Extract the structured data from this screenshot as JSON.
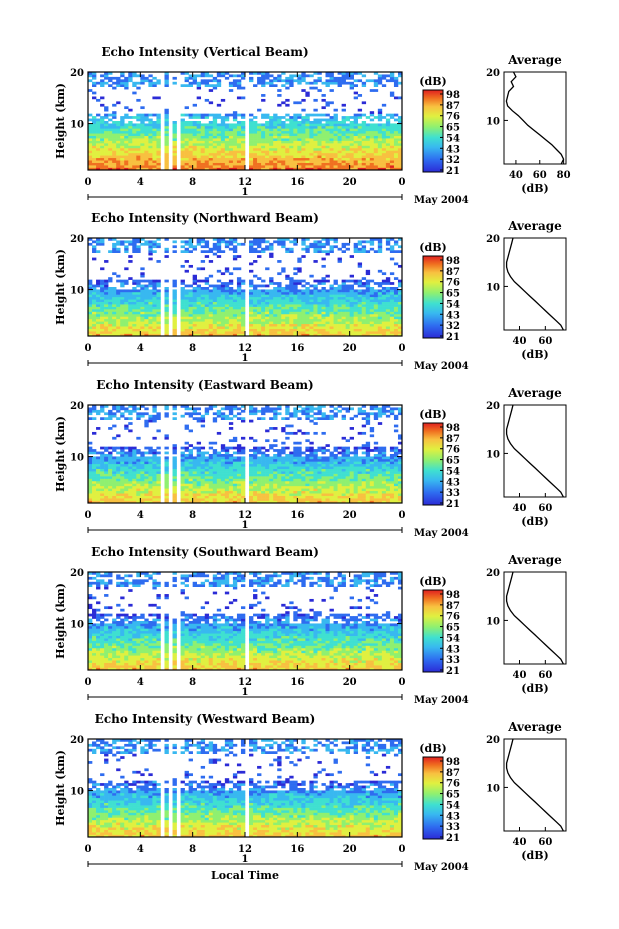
{
  "x_axis_title": "Local Time",
  "y_axis_label": "Height (km)",
  "colorbar_unit": "(dB)",
  "colorbar_ticks": [
    "98",
    "87",
    "76",
    "65",
    "54",
    "43",
    "32",
    "21"
  ],
  "colorbar_ticks_alt": [
    "98",
    "87",
    "76",
    "65",
    "54",
    "43",
    "33",
    "21"
  ],
  "date_label": "May 2004",
  "day_label": "1",
  "time_ticks": [
    "0",
    "4",
    "8",
    "12",
    "16",
    "20",
    "0"
  ],
  "height_ticks": [
    "20",
    "10"
  ],
  "average_title": "Average",
  "average_xlabel": "(dB)",
  "colors": {
    "scale": [
      "#2b2bd6",
      "#2e6cf0",
      "#38b8f0",
      "#3fe0d0",
      "#8ff070",
      "#e0f040",
      "#f8c040",
      "#f07020",
      "#e02020"
    ]
  },
  "chart_data": [
    {
      "type": "heatmap",
      "title": "Echo Intensity (Vertical Beam)",
      "xlabel": "Local Time",
      "ylabel": "Height (km)",
      "xlim": [
        0,
        24
      ],
      "ylim": [
        1,
        20
      ],
      "zlim": [
        21,
        98
      ],
      "colorbar_ticks": [
        98,
        87,
        76,
        65,
        54,
        43,
        32,
        21
      ],
      "data_gaps_hours": [
        [
          5.6,
          5.9
        ],
        [
          6.3,
          6.5
        ],
        [
          6.8,
          7.0
        ],
        [
          12.1,
          12.3
        ]
      ],
      "echo_top_km": 12,
      "surface_peak_db": 80,
      "average": {
        "title": "Average",
        "xlabel": "(dB)",
        "xticks": [
          40,
          60,
          80
        ],
        "xlim": [
          30,
          82
        ],
        "heights_km": [
          1,
          2,
          3,
          4,
          5,
          6,
          7,
          8,
          9,
          10,
          11,
          12,
          13,
          14,
          15,
          16,
          17,
          18,
          19,
          20
        ],
        "db": [
          78,
          80,
          78,
          74,
          70,
          65,
          60,
          55,
          50,
          46,
          42,
          37,
          33,
          32,
          33,
          34,
          38,
          36,
          40,
          38
        ]
      }
    },
    {
      "type": "heatmap",
      "title": "Echo Intensity (Northward Beam)",
      "xlabel": "Local Time",
      "ylabel": "Height (km)",
      "xlim": [
        0,
        24
      ],
      "ylim": [
        1,
        20
      ],
      "zlim": [
        21,
        98
      ],
      "colorbar_ticks": [
        98,
        87,
        76,
        65,
        54,
        43,
        32,
        21
      ],
      "data_gaps_hours": [
        [
          5.6,
          5.9
        ],
        [
          6.3,
          6.5
        ],
        [
          6.8,
          7.0
        ],
        [
          12.1,
          12.3
        ]
      ],
      "echo_top_km": 12,
      "surface_peak_db": 72,
      "average": {
        "title": "Average",
        "xlabel": "(dB)",
        "xticks": [
          40,
          60
        ],
        "xlim": [
          28,
          76
        ],
        "heights_km": [
          1,
          2,
          3,
          4,
          5,
          6,
          7,
          8,
          9,
          10,
          11,
          12,
          13,
          14,
          15,
          16,
          17,
          18,
          19,
          20
        ],
        "db": [
          74,
          72,
          68,
          64,
          60,
          56,
          52,
          48,
          44,
          40,
          36,
          33,
          31,
          30,
          30,
          31,
          32,
          33,
          34,
          35
        ]
      }
    },
    {
      "type": "heatmap",
      "title": "Echo Intensity (Eastward Beam)",
      "xlabel": "Local Time",
      "ylabel": "Height (km)",
      "xlim": [
        0,
        24
      ],
      "ylim": [
        1,
        20
      ],
      "zlim": [
        21,
        98
      ],
      "colorbar_ticks": [
        98,
        87,
        76,
        65,
        54,
        43,
        33,
        21
      ],
      "data_gaps_hours": [
        [
          5.6,
          5.9
        ],
        [
          6.3,
          6.5
        ],
        [
          6.8,
          7.0
        ],
        [
          12.1,
          12.3
        ]
      ],
      "echo_top_km": 12,
      "surface_peak_db": 72,
      "average": {
        "title": "Average",
        "xlabel": "(dB)",
        "xticks": [
          40,
          60
        ],
        "xlim": [
          28,
          76
        ],
        "heights_km": [
          1,
          2,
          3,
          4,
          5,
          6,
          7,
          8,
          9,
          10,
          11,
          12,
          13,
          14,
          15,
          16,
          17,
          18,
          19,
          20
        ],
        "db": [
          74,
          72,
          68,
          64,
          60,
          56,
          52,
          48,
          44,
          40,
          36,
          33,
          31,
          30,
          30,
          31,
          32,
          33,
          34,
          35
        ]
      }
    },
    {
      "type": "heatmap",
      "title": "Echo Intensity (Southward Beam)",
      "xlabel": "Local Time",
      "ylabel": "Height (km)",
      "xlim": [
        0,
        24
      ],
      "ylim": [
        1,
        20
      ],
      "zlim": [
        21,
        98
      ],
      "colorbar_ticks": [
        98,
        87,
        76,
        65,
        54,
        43,
        33,
        21
      ],
      "data_gaps_hours": [
        [
          5.6,
          5.9
        ],
        [
          6.3,
          6.5
        ],
        [
          6.8,
          7.0
        ],
        [
          12.1,
          12.3
        ]
      ],
      "echo_top_km": 12,
      "surface_peak_db": 72,
      "average": {
        "title": "Average",
        "xlabel": "(dB)",
        "xticks": [
          40,
          60
        ],
        "xlim": [
          28,
          76
        ],
        "heights_km": [
          1,
          2,
          3,
          4,
          5,
          6,
          7,
          8,
          9,
          10,
          11,
          12,
          13,
          14,
          15,
          16,
          17,
          18,
          19,
          20
        ],
        "db": [
          74,
          72,
          68,
          64,
          60,
          56,
          52,
          48,
          44,
          40,
          36,
          33,
          31,
          30,
          30,
          31,
          32,
          33,
          34,
          35
        ]
      }
    },
    {
      "type": "heatmap",
      "title": "Echo Intensity (Westward Beam)",
      "xlabel": "Local Time",
      "ylabel": "Height (km)",
      "xlim": [
        0,
        24
      ],
      "ylim": [
        1,
        20
      ],
      "zlim": [
        21,
        98
      ],
      "colorbar_ticks": [
        98,
        87,
        76,
        65,
        54,
        43,
        33,
        21
      ],
      "data_gaps_hours": [
        [
          5.6,
          5.9
        ],
        [
          6.3,
          6.5
        ],
        [
          6.8,
          7.0
        ],
        [
          12.1,
          12.3
        ]
      ],
      "echo_top_km": 12,
      "surface_peak_db": 72,
      "average": {
        "title": "Average",
        "xlabel": "(dB)",
        "xticks": [
          40,
          60
        ],
        "xlim": [
          28,
          76
        ],
        "heights_km": [
          1,
          2,
          3,
          4,
          5,
          6,
          7,
          8,
          9,
          10,
          11,
          12,
          13,
          14,
          15,
          16,
          17,
          18,
          19,
          20
        ],
        "db": [
          74,
          72,
          68,
          64,
          60,
          56,
          52,
          48,
          44,
          40,
          36,
          33,
          31,
          30,
          30,
          31,
          32,
          33,
          34,
          35
        ]
      }
    }
  ]
}
